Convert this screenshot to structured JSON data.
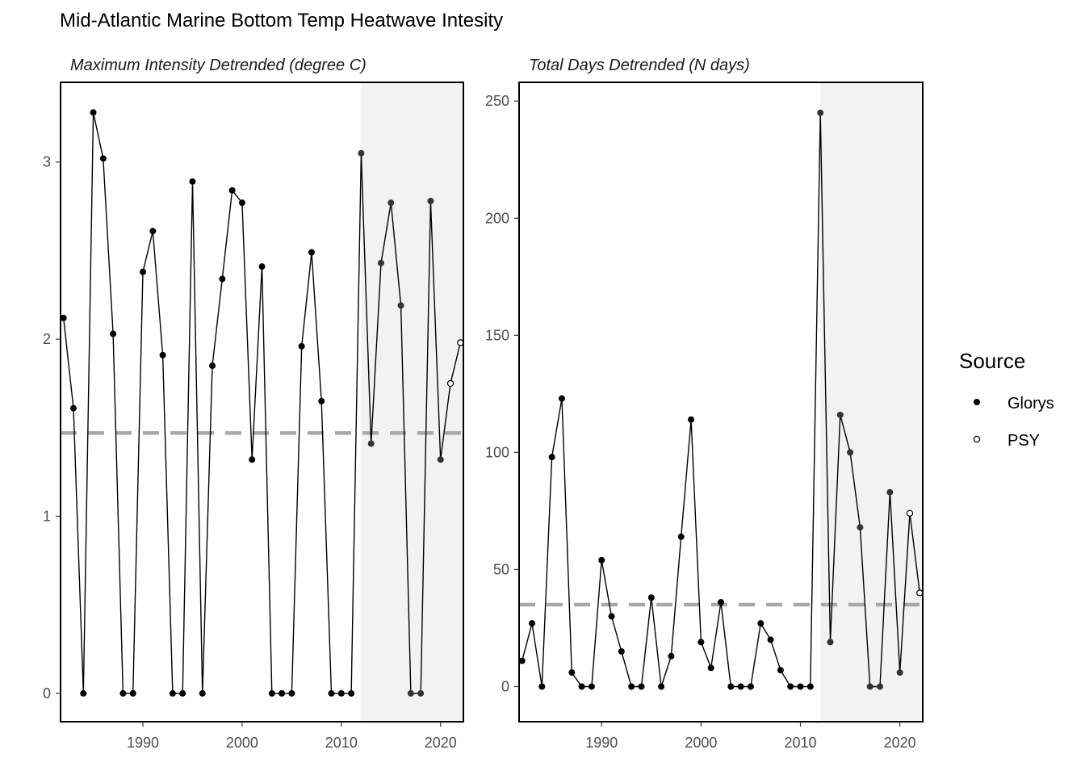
{
  "title": "Mid-Atlantic Marine Bottom Temp Heatwave Intesity",
  "legend": {
    "title": "Source",
    "items": [
      {
        "label": "Glorys",
        "marker": "filled"
      },
      {
        "label": "PSY",
        "marker": "open"
      }
    ]
  },
  "chart_data": [
    {
      "type": "line",
      "title": "Maximum Intensity Detrended (degree C)",
      "xlabel": "",
      "ylabel": "",
      "xlim": [
        1981.7,
        2022.3
      ],
      "ylim": [
        -0.16,
        3.45
      ],
      "x_ticks": [
        1990,
        2000,
        2010,
        2020
      ],
      "y_ticks": [
        0,
        1,
        2,
        3
      ],
      "shaded_x_range": [
        2012,
        2022.3
      ],
      "reference_line": 1.47,
      "series": [
        {
          "name": "Glorys",
          "marker": "filled",
          "x": [
            1982,
            1983,
            1984,
            1985,
            1986,
            1987,
            1988,
            1989,
            1990,
            1991,
            1992,
            1993,
            1994,
            1995,
            1996,
            1997,
            1998,
            1999,
            2000,
            2001,
            2002,
            2003,
            2004,
            2005,
            2006,
            2007,
            2008,
            2009,
            2010,
            2011,
            2012,
            2013,
            2014,
            2015,
            2016,
            2017,
            2018,
            2019,
            2020
          ],
          "y": [
            2.12,
            1.61,
            0.0,
            3.28,
            3.02,
            2.03,
            0.0,
            0.0,
            2.38,
            2.61,
            1.91,
            0.0,
            0.0,
            2.89,
            0.0,
            1.85,
            2.34,
            2.84,
            2.77,
            1.32,
            2.41,
            0.0,
            0.0,
            0.0,
            1.96,
            2.49,
            1.65,
            0.0,
            0.0,
            0.0,
            3.05,
            1.41,
            2.43,
            2.77,
            2.19,
            0.0,
            0.0,
            2.78,
            1.32
          ]
        },
        {
          "name": "PSY",
          "marker": "open",
          "x": [
            2021,
            2022
          ],
          "y": [
            1.75,
            1.98
          ]
        }
      ]
    },
    {
      "type": "line",
      "title": "Total Days Detrended (N days)",
      "xlabel": "",
      "ylabel": "",
      "xlim": [
        1981.7,
        2022.3
      ],
      "ylim": [
        -15,
        258
      ],
      "x_ticks": [
        1990,
        2000,
        2010,
        2020
      ],
      "y_ticks": [
        0,
        50,
        100,
        150,
        200,
        250
      ],
      "shaded_x_range": [
        2012,
        2022.3
      ],
      "reference_line": 35,
      "series": [
        {
          "name": "Glorys",
          "marker": "filled",
          "x": [
            1982,
            1983,
            1984,
            1985,
            1986,
            1987,
            1988,
            1989,
            1990,
            1991,
            1992,
            1993,
            1994,
            1995,
            1996,
            1997,
            1998,
            1999,
            2000,
            2001,
            2002,
            2003,
            2004,
            2005,
            2006,
            2007,
            2008,
            2009,
            2010,
            2011,
            2012,
            2013,
            2014,
            2015,
            2016,
            2017,
            2018,
            2019,
            2020
          ],
          "y": [
            11,
            27,
            0,
            98,
            123,
            6,
            0,
            0,
            54,
            30,
            15,
            0,
            0,
            38,
            0,
            13,
            64,
            114,
            19,
            8,
            36,
            0,
            0,
            0,
            27,
            20,
            7,
            0,
            0,
            0,
            245,
            19,
            116,
            100,
            68,
            0,
            0,
            83,
            6
          ]
        },
        {
          "name": "PSY",
          "marker": "open",
          "x": [
            2021,
            2022
          ],
          "y": [
            74,
            40
          ]
        }
      ]
    }
  ]
}
